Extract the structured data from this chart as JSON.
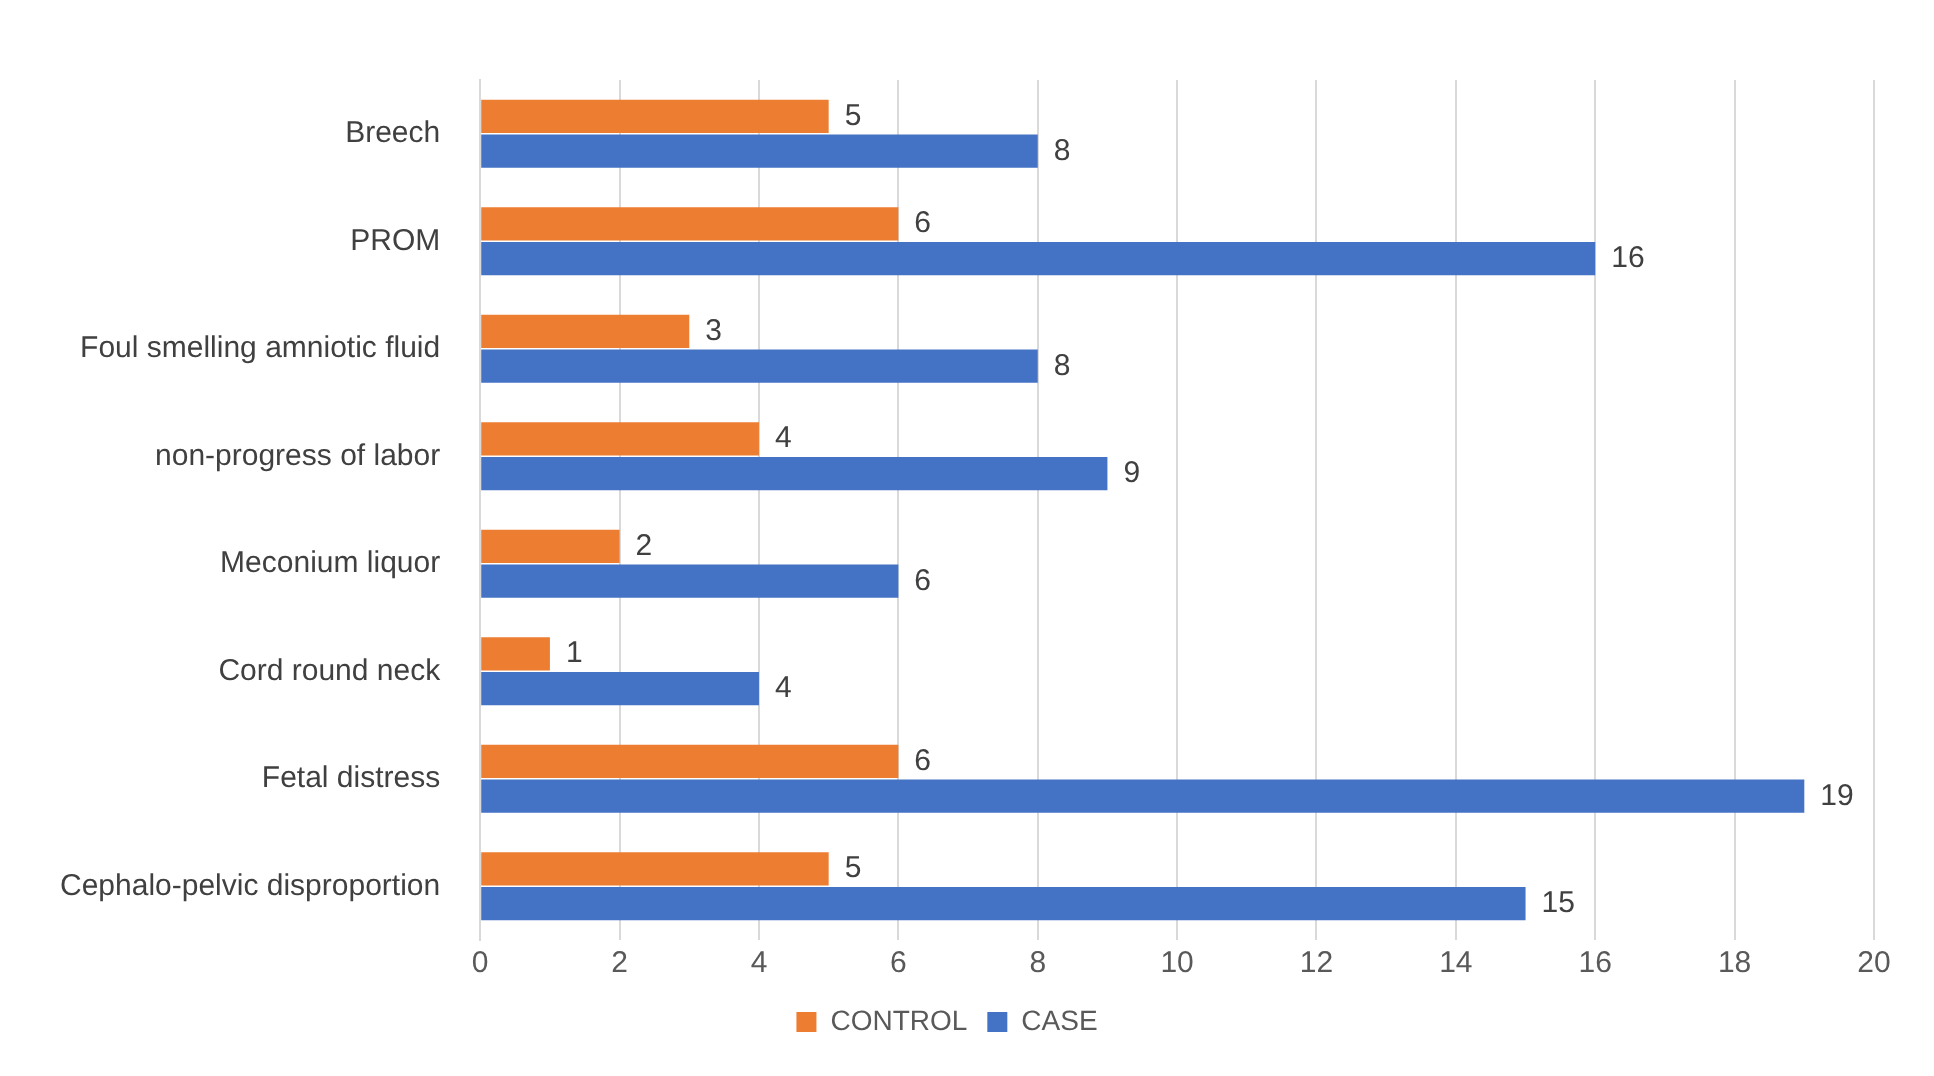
{
  "chart_data": {
    "type": "bar",
    "orientation": "horizontal",
    "categories": [
      "Breech",
      "PROM",
      "Foul smelling amniotic fluid",
      "non-progress of labor",
      "Meconium liquor",
      "Cord round neck",
      "Fetal distress",
      "Cephalo-pelvic disproportion"
    ],
    "series": [
      {
        "name": "CONTROL",
        "color": "#ed7d31",
        "values": [
          5,
          6,
          3,
          4,
          2,
          1,
          6,
          5
        ]
      },
      {
        "name": "CASE",
        "color": "#4472c4",
        "values": [
          8,
          16,
          8,
          9,
          6,
          4,
          19,
          15
        ]
      }
    ],
    "xlim": [
      0,
      20
    ],
    "xticks": [
      0,
      2,
      4,
      6,
      8,
      10,
      12,
      14,
      16,
      18,
      20
    ],
    "grid": "x",
    "legend": "bottom",
    "data_labels": true
  }
}
